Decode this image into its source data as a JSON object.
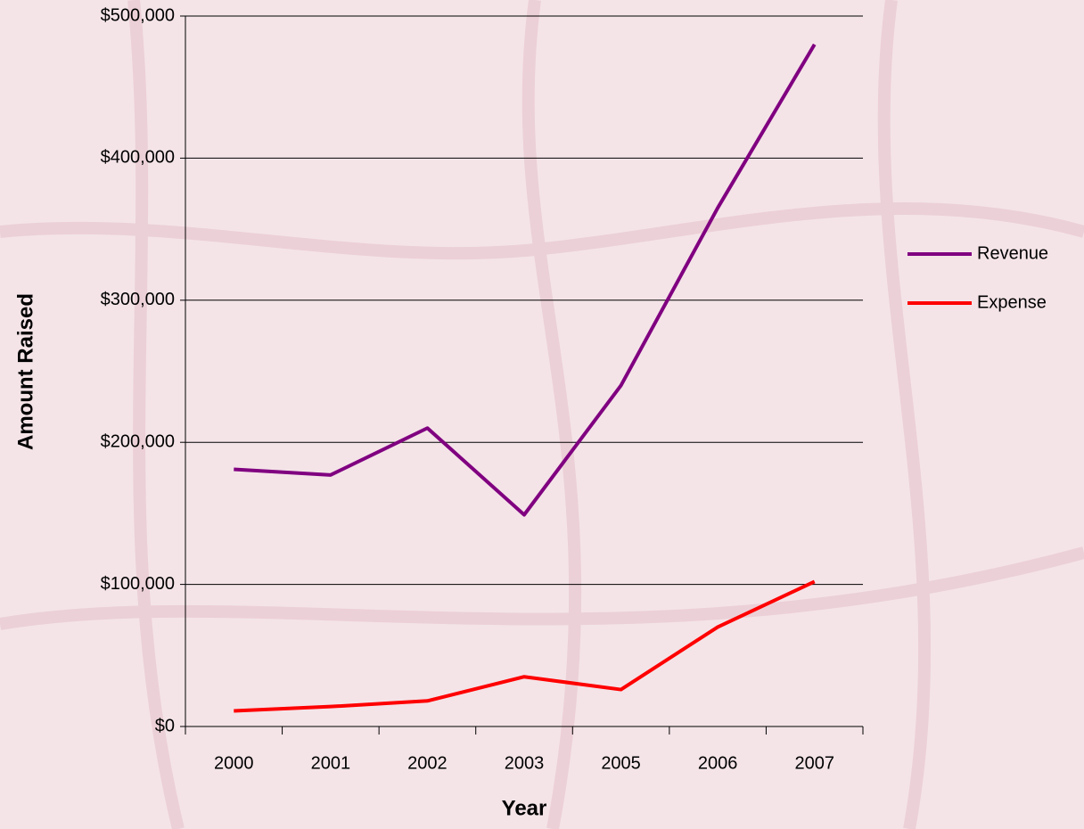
{
  "chart_data": {
    "type": "line",
    "categories": [
      "2000",
      "2001",
      "2002",
      "2003",
      "2005",
      "2006",
      "2007"
    ],
    "series": [
      {
        "name": "Revenue",
        "color": "#800080",
        "values": [
          181000,
          177000,
          210000,
          149000,
          240000,
          365000,
          480000
        ]
      },
      {
        "name": "Expense",
        "color": "#ff0000",
        "values": [
          11000,
          14000,
          18000,
          35000,
          26000,
          70000,
          102000
        ]
      }
    ],
    "ylim": [
      0,
      500000
    ],
    "yticks": [
      {
        "value": 0,
        "label": "$0"
      },
      {
        "value": 100000,
        "label": "$100,000"
      },
      {
        "value": 200000,
        "label": "$200,000"
      },
      {
        "value": 300000,
        "label": "$300,000"
      },
      {
        "value": 400000,
        "label": "$400,000"
      },
      {
        "value": 500000,
        "label": "$500,000"
      }
    ],
    "xlabel": "Year",
    "ylabel": "Amount Raised",
    "grid": true,
    "legend": "right"
  }
}
